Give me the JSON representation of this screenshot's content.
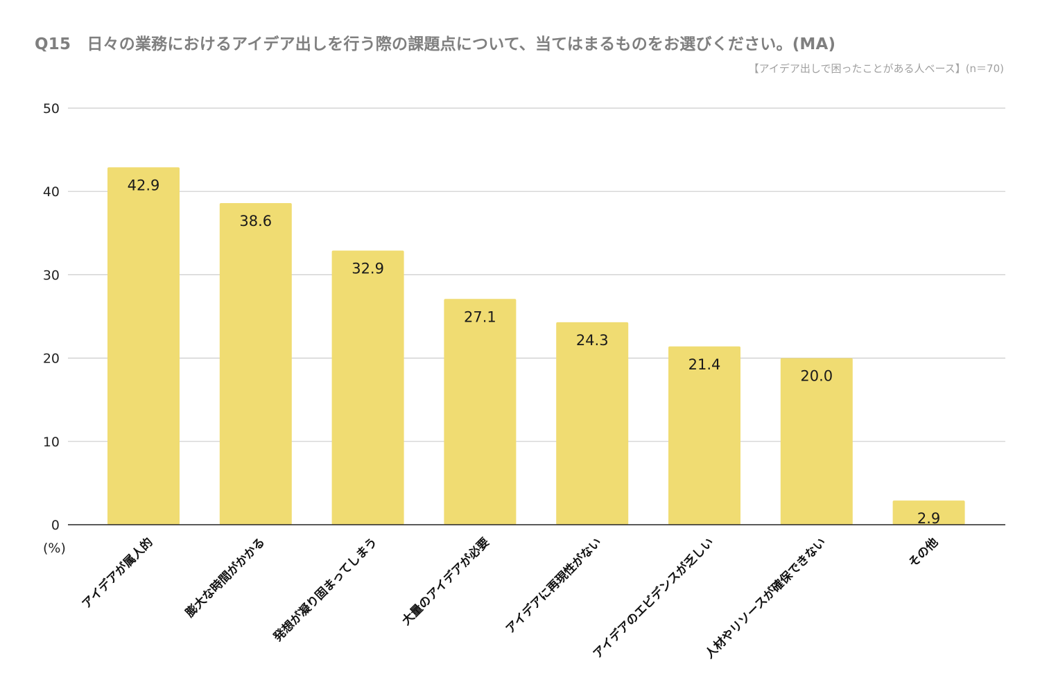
{
  "header": {
    "title": "Q15　日々の業務におけるアイデア出しを行う際の課題点について、当てはまるものをお選びください。(MA)",
    "subtitle": "【アイデア出しで困ったことがある人ベース】(n＝70)"
  },
  "chart_data": {
    "type": "bar",
    "categories": [
      "アイデアが属人的",
      "膨大な時間がかかる",
      "発想が凝り固まってしまう",
      "大量のアイデアが必要",
      "アイデアに再現性がない",
      "アイデアのエビデンスが乏しい",
      "人材やリソースが確保できない",
      "その他"
    ],
    "values": [
      42.9,
      38.6,
      32.9,
      27.1,
      24.3,
      21.4,
      20.0,
      2.9
    ],
    "value_labels": [
      "42.9",
      "38.6",
      "32.9",
      "27.1",
      "24.3",
      "21.4",
      "20.0",
      "2.9"
    ],
    "ylim": [
      0,
      50
    ],
    "yticks": [
      0,
      10,
      20,
      30,
      40,
      50
    ],
    "y_unit_label": "(%)",
    "grid": true,
    "bar_color": "#f0dc72",
    "grid_color": "#cccccc",
    "axis_color": "#222222"
  }
}
